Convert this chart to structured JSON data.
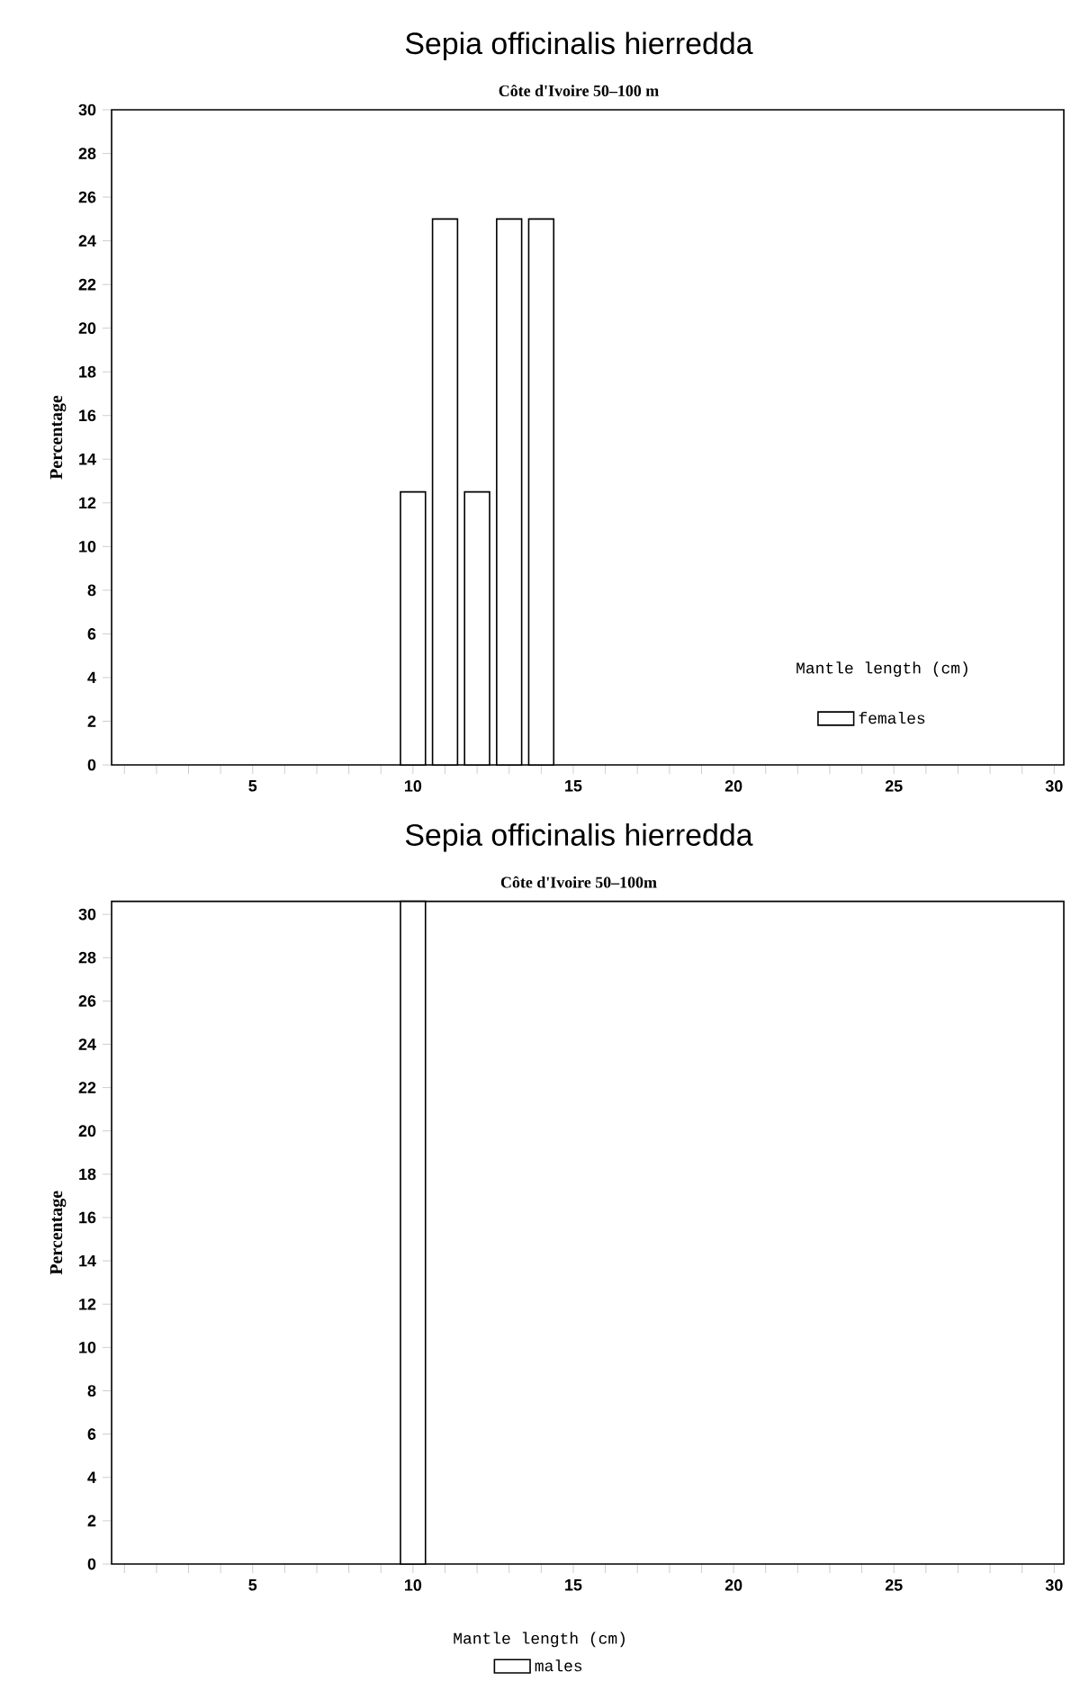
{
  "chart_data": [
    {
      "type": "bar",
      "title": "Sepia officinalis hierredda",
      "subtitle": "Côte d'Ivoire 50–100 m",
      "ylabel": "Percentage",
      "legend_title": "Mantle length (cm)",
      "legend": "bottom right",
      "x": [
        10,
        11,
        12,
        13,
        14
      ],
      "series": [
        {
          "name": "females",
          "color": "#000000",
          "values": [
            12.5,
            25,
            12.5,
            25,
            25
          ]
        }
      ],
      "xlim": [
        0.6,
        30.3
      ],
      "ylim": [
        0,
        30
      ],
      "xticks": [
        {
          "value": 1,
          "label": null
        },
        {
          "value": 2,
          "label": null
        },
        {
          "value": 3,
          "label": null
        },
        {
          "value": 4,
          "label": null
        },
        5,
        {
          "value": 6,
          "label": null
        },
        {
          "value": 7,
          "label": null
        },
        {
          "value": 8,
          "label": null
        },
        {
          "value": 9,
          "label": null
        },
        10,
        {
          "value": 11,
          "label": null
        },
        {
          "value": 12,
          "label": null
        },
        {
          "value": 13,
          "label": null
        },
        {
          "value": 14,
          "label": null
        },
        15,
        {
          "value": 16,
          "label": null
        },
        {
          "value": 17,
          "label": null
        },
        {
          "value": 18,
          "label": null
        },
        {
          "value": 19,
          "label": null
        },
        20,
        {
          "value": 21,
          "label": null
        },
        {
          "value": 22,
          "label": null
        },
        {
          "value": 23,
          "label": null
        },
        {
          "value": 24,
          "label": null
        },
        25,
        {
          "value": 26,
          "label": null
        },
        {
          "value": 27,
          "label": null
        },
        {
          "value": 28,
          "label": null
        },
        {
          "value": 29,
          "label": null
        },
        30
      ],
      "yticks": [
        0,
        2,
        4,
        6,
        8,
        10,
        12,
        14,
        16,
        18,
        20,
        22,
        24,
        26,
        28,
        30
      ]
    },
    {
      "type": "bar",
      "title": "Sepia officinalis hierredda",
      "subtitle": "Côte d'Ivoire 50–100m",
      "ylabel": "Percentage",
      "legend_title": "Mantle length (cm)",
      "legend": "bottom",
      "x": [
        10
      ],
      "series": [
        {
          "name": "males",
          "color": "#000000",
          "values": [
            30.6
          ]
        }
      ],
      "xlim": [
        0.6,
        30.3
      ],
      "ylim": [
        0,
        30.6
      ],
      "xticks": [
        {
          "value": 1,
          "label": null
        },
        {
          "value": 2,
          "label": null
        },
        {
          "value": 3,
          "label": null
        },
        {
          "value": 4,
          "label": null
        },
        5,
        {
          "value": 6,
          "label": null
        },
        {
          "value": 7,
          "label": null
        },
        {
          "value": 8,
          "label": null
        },
        {
          "value": 9,
          "label": null
        },
        10,
        {
          "value": 11,
          "label": null
        },
        {
          "value": 12,
          "label": null
        },
        {
          "value": 13,
          "label": null
        },
        {
          "value": 14,
          "label": null
        },
        15,
        {
          "value": 16,
          "label": null
        },
        {
          "value": 17,
          "label": null
        },
        {
          "value": 18,
          "label": null
        },
        {
          "value": 19,
          "label": null
        },
        20,
        {
          "value": 21,
          "label": null
        },
        {
          "value": 22,
          "label": null
        },
        {
          "value": 23,
          "label": null
        },
        {
          "value": 24,
          "label": null
        },
        25,
        {
          "value": 26,
          "label": null
        },
        {
          "value": 27,
          "label": null
        },
        {
          "value": 28,
          "label": null
        },
        {
          "value": 29,
          "label": null
        },
        30
      ],
      "yticks": [
        0,
        2,
        4,
        6,
        8,
        10,
        12,
        14,
        16,
        18,
        20,
        22,
        24,
        26,
        28,
        30
      ]
    }
  ]
}
